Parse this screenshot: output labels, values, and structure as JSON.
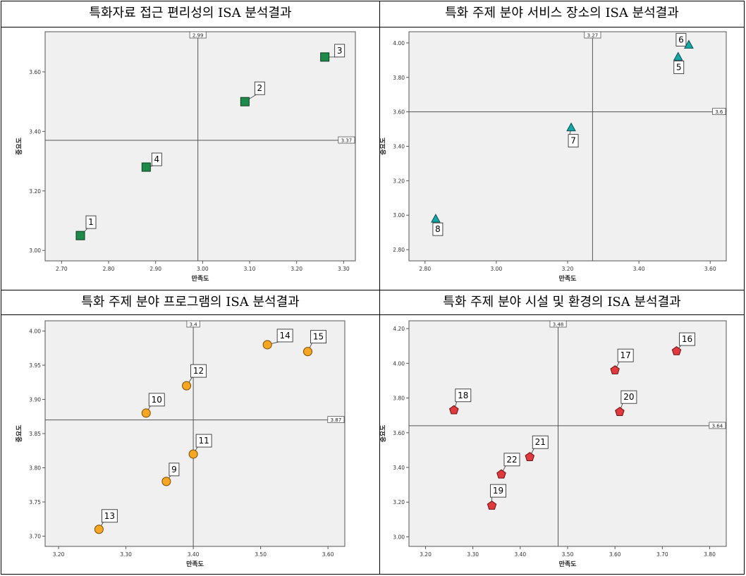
{
  "titles": [
    "특화자료 접근 편리성의 ISA 분석결과",
    "특화 주제 분야 서비스 장소의 ISA 분석결과",
    "특화 주제 분야 프로그램의 ISA 분석결과",
    "특화 주제 분야 시설 및 환경의 ISA 분석결과"
  ],
  "colors": {
    "green": "#1e8a4a",
    "teal": "#17a6a6",
    "orange": "#f5a623",
    "red": "#e03a3e",
    "bg": "#f0f0f0"
  },
  "chart_data": [
    {
      "type": "scatter",
      "title": "특화자료 접근 편리성의 ISA 분석결과",
      "xlabel": "만족도",
      "ylabel": "중요도",
      "xlim": [
        2.665,
        3.325
      ],
      "ylim": [
        2.965,
        3.735
      ],
      "xticks": [
        "2.70",
        "2.80",
        "2.90",
        "3.00",
        "3.10",
        "3.20",
        "3.30"
      ],
      "yticks": [
        "3.00",
        "3.20",
        "3.40",
        "3.60"
      ],
      "vref": 2.99,
      "vref_label": "2.99",
      "href": 3.37,
      "href_label": "3.37",
      "marker": "square",
      "color": "#1e8a4a",
      "points": [
        {
          "label": "1",
          "x": 2.74,
          "y": 3.05
        },
        {
          "label": "2",
          "x": 3.09,
          "y": 3.5
        },
        {
          "label": "3",
          "x": 3.26,
          "y": 3.65
        },
        {
          "label": "4",
          "x": 2.88,
          "y": 3.28
        }
      ]
    },
    {
      "type": "scatter",
      "title": "특화 주제 분야 서비스 장소의 ISA 분석결과",
      "xlabel": "만족도",
      "ylabel": "중요도",
      "xlim": [
        2.755,
        3.645
      ],
      "ylim": [
        2.735,
        4.065
      ],
      "xticks": [
        "2.80",
        "3.00",
        "3.20",
        "3.40",
        "3.60"
      ],
      "yticks": [
        "2.80",
        "3.00",
        "3.20",
        "3.40",
        "3.60",
        "3.80",
        "4.00"
      ],
      "vref": 3.27,
      "vref_label": "3.27",
      "href": 3.6,
      "href_label": "3.6",
      "marker": "triangle",
      "color": "#17a6a6",
      "points": [
        {
          "label": "5",
          "x": 3.51,
          "y": 3.92
        },
        {
          "label": "6",
          "x": 3.54,
          "y": 3.99
        },
        {
          "label": "7",
          "x": 3.21,
          "y": 3.51
        },
        {
          "label": "8",
          "x": 2.83,
          "y": 2.98
        }
      ]
    },
    {
      "type": "scatter",
      "title": "특화 주제 분야 프로그램의 ISA 분석결과",
      "xlabel": "만족도",
      "ylabel": "중요도",
      "xlim": [
        3.18,
        3.625
      ],
      "ylim": [
        3.685,
        4.015
      ],
      "xticks": [
        "3.20",
        "3.30",
        "3.40",
        "3.50",
        "3.60"
      ],
      "yticks": [
        "3.70",
        "3.75",
        "3.80",
        "3.85",
        "3.90",
        "3.95",
        "4.00"
      ],
      "vref": 3.4,
      "vref_label": "3.4",
      "href": 3.87,
      "href_label": "3.87",
      "marker": "circle",
      "color": "#f5a623",
      "points": [
        {
          "label": "9",
          "x": 3.36,
          "y": 3.78
        },
        {
          "label": "10",
          "x": 3.33,
          "y": 3.88
        },
        {
          "label": "11",
          "x": 3.4,
          "y": 3.82
        },
        {
          "label": "12",
          "x": 3.39,
          "y": 3.92
        },
        {
          "label": "13",
          "x": 3.26,
          "y": 3.71
        },
        {
          "label": "14",
          "x": 3.51,
          "y": 3.98
        },
        {
          "label": "15",
          "x": 3.57,
          "y": 3.97
        }
      ]
    },
    {
      "type": "scatter",
      "title": "특화 주제 분야 시설 및 환경의 ISA 분석결과",
      "xlabel": "만족도",
      "ylabel": "중요도",
      "xlim": [
        3.165,
        3.835
      ],
      "ylim": [
        2.945,
        4.245
      ],
      "xticks": [
        "3.20",
        "3.30",
        "3.40",
        "3.50",
        "3.60",
        "3.70",
        "3.80"
      ],
      "yticks": [
        "3.00",
        "3.20",
        "3.40",
        "3.60",
        "3.80",
        "4.00",
        "4.20"
      ],
      "vref": 3.48,
      "vref_label": "3.48",
      "href": 3.64,
      "href_label": "3.64",
      "marker": "pentagon",
      "color": "#e03a3e",
      "points": [
        {
          "label": "16",
          "x": 3.73,
          "y": 4.07
        },
        {
          "label": "17",
          "x": 3.6,
          "y": 3.96
        },
        {
          "label": "18",
          "x": 3.26,
          "y": 3.73
        },
        {
          "label": "19",
          "x": 3.34,
          "y": 3.18
        },
        {
          "label": "20",
          "x": 3.61,
          "y": 3.72
        },
        {
          "label": "21",
          "x": 3.42,
          "y": 3.46
        },
        {
          "label": "22",
          "x": 3.36,
          "y": 3.36
        }
      ]
    }
  ]
}
